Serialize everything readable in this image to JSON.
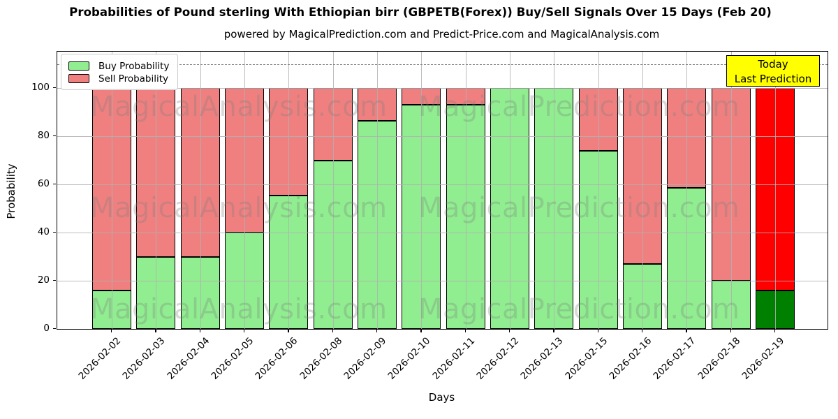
{
  "title": "Probabilities of Pound sterling With Ethiopian birr (GBPETB(Forex)) Buy/Sell Signals Over 15 Days (Feb 20)",
  "subtitle": "powered by MagicalPrediction.com and Predict-Price.com and MagicalAnalysis.com",
  "annotation": {
    "line1": "Today",
    "line2": "Last Prediction",
    "bg_color": "#ffff00",
    "border_color": "#000000"
  },
  "watermarks": {
    "left_text": "MagicalAnalysis.com",
    "right_text": "MagicalPrediction.com"
  },
  "chart_data": {
    "type": "bar",
    "stacked": true,
    "title": "Probabilities of Pound sterling With Ethiopian birr (GBPETB(Forex)) Buy/Sell Signals Over 15 Days (Feb 20)",
    "xlabel": "Days",
    "ylabel": "Probability",
    "ylim": [
      0,
      115
    ],
    "yticks": [
      0,
      20,
      40,
      60,
      80,
      100
    ],
    "grid": true,
    "legend_position": "upper left",
    "dashed_line_y": 110,
    "categories": [
      "2026-02-02",
      "2026-02-03",
      "2026-02-04",
      "2026-02-05",
      "2026-02-06",
      "2026-02-08",
      "2026-02-09",
      "2026-02-10",
      "2026-02-11",
      "2026-02-12",
      "2026-02-13",
      "2026-02-15",
      "2026-02-16",
      "2026-02-17",
      "2026-02-18",
      "2026-02-19"
    ],
    "series": [
      {
        "name": "Buy Probability",
        "color": "#90EE90",
        "values": [
          16,
          30,
          30,
          40,
          55.5,
          70,
          86.5,
          93,
          93,
          100,
          100,
          74,
          27,
          58.5,
          20,
          16
        ]
      },
      {
        "name": "Sell Probability",
        "color": "#F08080",
        "values": [
          84,
          70,
          70,
          60,
          44.5,
          30,
          13.5,
          7,
          7,
          0,
          0,
          26,
          73,
          41.5,
          80,
          84
        ]
      }
    ],
    "last_bar_highlight": {
      "buy_color": "#008000",
      "sell_color": "#FF0000"
    },
    "bar_edge_color": "#000000"
  }
}
